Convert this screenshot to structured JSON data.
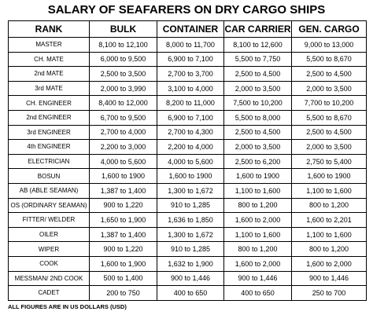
{
  "title": "SALARY OF SEAFARERS ON DRY CARGO SHIPS",
  "table": {
    "header": [
      "RANK",
      "BULK",
      "CONTAINER",
      "CAR CARRIER",
      "GEN. CARGO"
    ],
    "rows": [
      [
        "MASTER",
        "8,100 to 12,100",
        "8,000 to 11,700",
        "8,100 to 12,600",
        "9,000 to 13,000"
      ],
      [
        "CH. MATE",
        "6,000 to 9,500",
        "6,900 to 7,100",
        "5,500 to 7,750",
        "5,500 to 8,670"
      ],
      [
        "2nd MATE",
        "2,500 to 3,500",
        "2,700 to 3,700",
        "2,500 to 4,500",
        "2,500 to 4,500"
      ],
      [
        "3rd MATE",
        "2,000 to 3,990",
        "3,100 to 4,000",
        "2,000 to 3,500",
        "2,000 to 3,500"
      ],
      [
        "CH. ENGINEER",
        "8,400 to 12,000",
        "8,200 to 11,000",
        "7,500 to 10,200",
        "7,700 to 10,200"
      ],
      [
        "2nd ENGINEER",
        "6,700 to 9,500",
        "6,900 to 7,100",
        "5,500 to 8,000",
        "5,500 to 8,670"
      ],
      [
        "3rd ENGINEER",
        "2,700 to 4,000",
        "2,700 to 4,300",
        "2,500 to 4,500",
        "2,500 to 4,500"
      ],
      [
        "4th ENGINEER",
        "2,200 to 3,000",
        "2,200 to 4,000",
        "2,000 to 3,500",
        "2,000 to 3,500"
      ],
      [
        "ELECTRICIAN",
        "4,000 to 5,600",
        "4,000 to 5,600",
        "2,500 to 6,200",
        "2,750 to 5,400"
      ],
      [
        "BOSUN",
        "1,600 to 1900",
        "1,600 to 1900",
        "1,600 to 1900",
        "1,600 to 1900"
      ],
      [
        "AB (ABLE SEAMAN)",
        "1,387 to 1,400",
        "1,300 to 1,672",
        "1,100 to 1,600",
        "1,100 to 1,600"
      ],
      [
        "OS (ORDINARY SEAMAN)",
        "900 to 1,220",
        "910 to 1,285",
        "800 to 1,200",
        "800 to 1,200"
      ],
      [
        "FITTER/ WELDER",
        "1,650 to 1,900",
        "1,636 to 1,850",
        "1,600 to 2,000",
        "1,600 to 2,201"
      ],
      [
        "OILER",
        "1,387 to 1,400",
        "1,300 to 1,672",
        "1,100 to 1,600",
        "1,100 to 1,600"
      ],
      [
        "WIPER",
        "900 to 1,220",
        "910 to 1,285",
        "800 to 1,200",
        "800 to 1,200"
      ],
      [
        "COOK",
        "1,600 to 1,900",
        "1,632 to 1,900",
        "1,600 to 2,000",
        "1,600 to 2,000"
      ],
      [
        "MESSMAN/ 2ND COOK",
        "500 to 1,400",
        "900 to 1,446",
        "900 to 1,446",
        "900 to 1,446"
      ],
      [
        "CADET",
        "200 to 750",
        "400 to 650",
        "400 to 650",
        "250 to 700"
      ]
    ]
  },
  "footnote": "ALL FIGURES ARE IN US DOLLARS (USD)"
}
